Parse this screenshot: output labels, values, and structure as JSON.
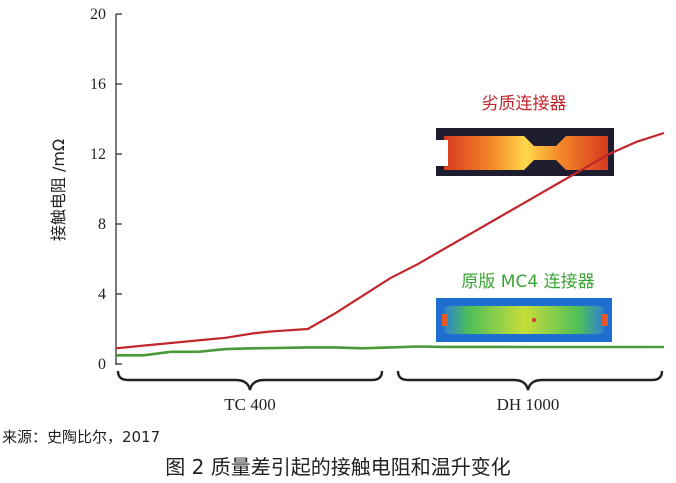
{
  "chart_data": {
    "type": "line",
    "ylabel": "接触电阻 /mΩ",
    "ylim": [
      0,
      20
    ],
    "yticks": [
      0,
      4,
      8,
      12,
      16,
      20
    ],
    "x_groups": [
      {
        "label": "TC 400"
      },
      {
        "label": "DH 1000"
      }
    ],
    "series": [
      {
        "name": "劣质连接器",
        "color": "#c0272d",
        "x": [
          0,
          5,
          10,
          15,
          20,
          25,
          28,
          30,
          35,
          40,
          45,
          50,
          55,
          60,
          65,
          70,
          75,
          80,
          85,
          90,
          95,
          100
        ],
        "y": [
          0.9,
          1.05,
          1.2,
          1.35,
          1.5,
          1.75,
          1.85,
          1.9,
          2.0,
          2.9,
          3.9,
          4.9,
          5.7,
          6.6,
          7.5,
          8.4,
          9.3,
          10.2,
          11.1,
          12.0,
          12.7,
          13.2
        ]
      },
      {
        "name": "原版 MC4 连接器",
        "color": "#4a9a3a",
        "x": [
          0,
          5,
          10,
          15,
          20,
          25,
          30,
          35,
          40,
          45,
          50,
          55,
          60,
          65,
          70,
          75,
          80,
          85,
          90,
          95,
          100
        ],
        "y": [
          0.5,
          0.5,
          0.7,
          0.7,
          0.85,
          0.9,
          0.92,
          0.95,
          0.95,
          0.9,
          0.95,
          1.0,
          0.98,
          0.98,
          0.98,
          0.97,
          0.97,
          0.97,
          0.97,
          0.97,
          0.97
        ]
      }
    ],
    "annotations": [
      {
        "text": "劣质连接器",
        "color": "#c0272d"
      },
      {
        "text": "原版 MC4 连接器",
        "color": "#3aa435"
      }
    ]
  },
  "source_text": "来源：史陶比尔，2017",
  "caption": "图 2  质量差引起的接触电阻和温升变化"
}
